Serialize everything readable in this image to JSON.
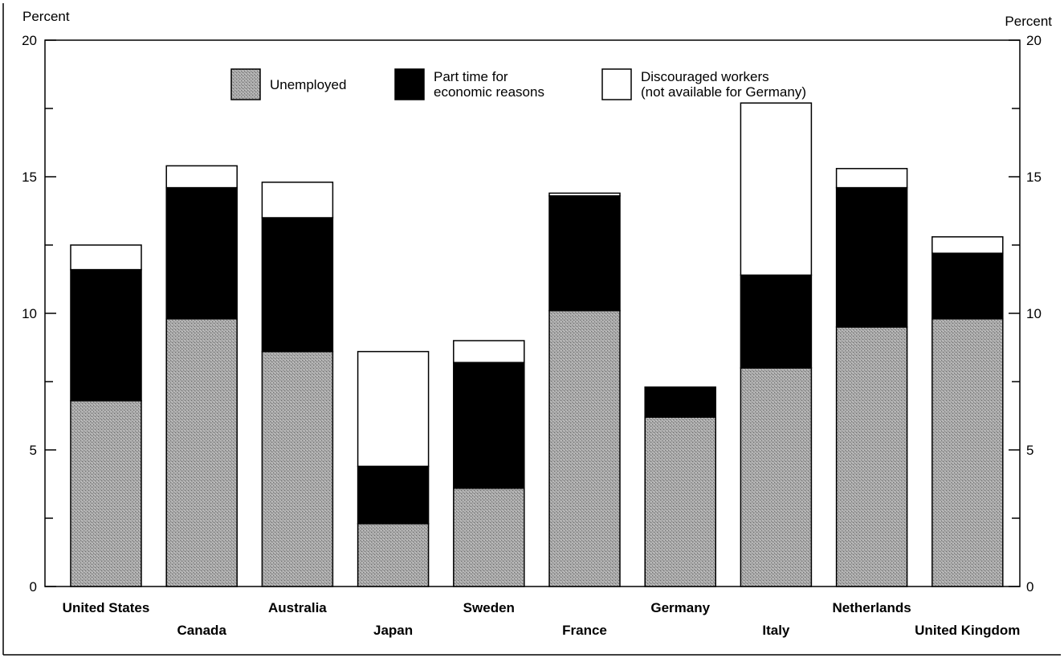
{
  "chart_data": {
    "type": "bar",
    "stacked": true,
    "categories": [
      "United States",
      "Canada",
      "Australia",
      "Japan",
      "Sweden",
      "France",
      "Germany",
      "Italy",
      "Netherlands",
      "United Kingdom"
    ],
    "series": [
      {
        "name": "Unemployed",
        "color": "#9a9a9a",
        "values": [
          6.8,
          9.8,
          8.6,
          2.3,
          3.6,
          10.1,
          6.2,
          8.0,
          9.5,
          9.8
        ]
      },
      {
        "name": "Part time for\neconomic reasons",
        "color": "#000000",
        "values": [
          4.8,
          4.8,
          4.9,
          2.1,
          4.6,
          4.2,
          1.1,
          3.4,
          5.1,
          2.4
        ]
      },
      {
        "name": "Discouraged workers\n(not available for Germany)",
        "color": "#ffffff",
        "values": [
          0.9,
          0.8,
          1.3,
          4.2,
          0.8,
          0.1,
          0.0,
          6.3,
          0.7,
          0.6
        ]
      }
    ],
    "ylabel_left": "Percent",
    "ylabel_right": "Percent",
    "ylim": [
      0,
      20
    ],
    "yticks": [
      0,
      5,
      10,
      15,
      20
    ],
    "legend_placement": "top-center",
    "grid": false
  }
}
